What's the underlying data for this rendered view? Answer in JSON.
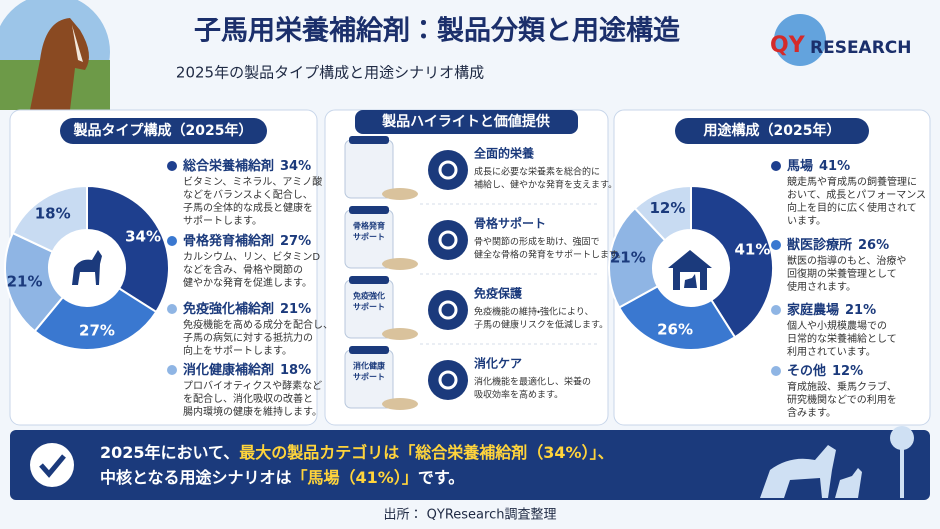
{
  "header": {
    "title": "子馬用栄養補給剤：製品分類と用途構造",
    "subtitle": "2025年の製品タイプ構成と用途シナリオ構成",
    "logo": {
      "qy": "QY",
      "research": "RESEARCH"
    }
  },
  "chart_data": [
    {
      "type": "pie",
      "title": "製品タイプ構成（2025年）",
      "categories": [
        "総合栄養補給剤",
        "骨格発育補給剤",
        "免疫強化補給剤",
        "消化健康補給剤"
      ],
      "values": [
        34,
        27,
        21,
        18
      ],
      "value_labels": [
        "34%",
        "27%",
        "21%",
        "18%"
      ],
      "colors": [
        "#1e3f8e",
        "#3a78d0",
        "#8fb5e4",
        "#c8dbf2"
      ],
      "descriptions": [
        [
          "ビタミン、ミネラル、アミノ酸",
          "などをバランスよく配合し、",
          "子馬の全体的な成長と健康を",
          "サポートします。"
        ],
        [
          "カルシウム、リン、ビタミンD",
          "などを含み、骨格や関節の",
          "健やかな発育を促進します。"
        ],
        [
          "免疫機能を高める成分を配合し、",
          "子馬の病気に対する抵抗力の",
          "向上をサポートします。"
        ],
        [
          "プロバイオティクスや酵素など",
          "を配合し、消化吸収の改善と",
          "腸内環境の健康を維持します。"
        ]
      ]
    },
    {
      "type": "pie",
      "title": "用途構成（2025年）",
      "categories": [
        "馬場",
        "獣医診療所",
        "家庭農場",
        "その他"
      ],
      "values": [
        41,
        26,
        21,
        12
      ],
      "value_labels": [
        "41%",
        "26%",
        "21%",
        "12%"
      ],
      "colors": [
        "#1e3f8e",
        "#3a78d0",
        "#8fb5e4",
        "#c8dbf2"
      ],
      "descriptions": [
        [
          "競走馬や育成馬の飼養管理に",
          "おいて、成長とパフォーマンス",
          "向上を目的に広く使用されて",
          "います。"
        ],
        [
          "獣医の指導のもと、治療や",
          "回復期の栄養管理として",
          "使用されます。"
        ],
        [
          "個人や小規模農場での",
          "日常的な栄養補給として",
          "利用されています。"
        ],
        [
          "育成施設、乗馬クラブ、",
          "研究機関などでの利用を",
          "含みます。"
        ]
      ]
    }
  ],
  "highlights": {
    "title": "製品ハイライトと価値提供",
    "items": [
      {
        "title": "全面的栄養",
        "description": [
          "成長に必要な栄養素を総合的に",
          "補給し、健やかな発育を支えます。"
        ]
      },
      {
        "title": "骨格サポート",
        "package_label": [
          "骨格発育",
          "サポート"
        ],
        "description": [
          "骨や関節の形成を助け、強固で",
          "健全な骨格の発育をサポートします。"
        ]
      },
      {
        "title": "免疫保護",
        "package_label": [
          "免疫強化",
          "サポート"
        ],
        "description": [
          "免疫機能の維持・強化により、",
          "子馬の健康リスクを低減します。"
        ]
      },
      {
        "title": "消化ケア",
        "package_label": [
          "消化健康",
          "サポート"
        ],
        "description": [
          "消化機能を最適化し、栄養の",
          "吸収効率を高めます。"
        ]
      }
    ]
  },
  "conclusion": {
    "line1": [
      "2025年において、",
      "最大の製品カテゴリは「総合栄養補給剤（34%）」、"
    ],
    "line2": [
      "中核となる用途シナリオは",
      "「馬場（41%）」",
      "です。"
    ]
  },
  "source": "出所： QYResearch調査整理"
}
